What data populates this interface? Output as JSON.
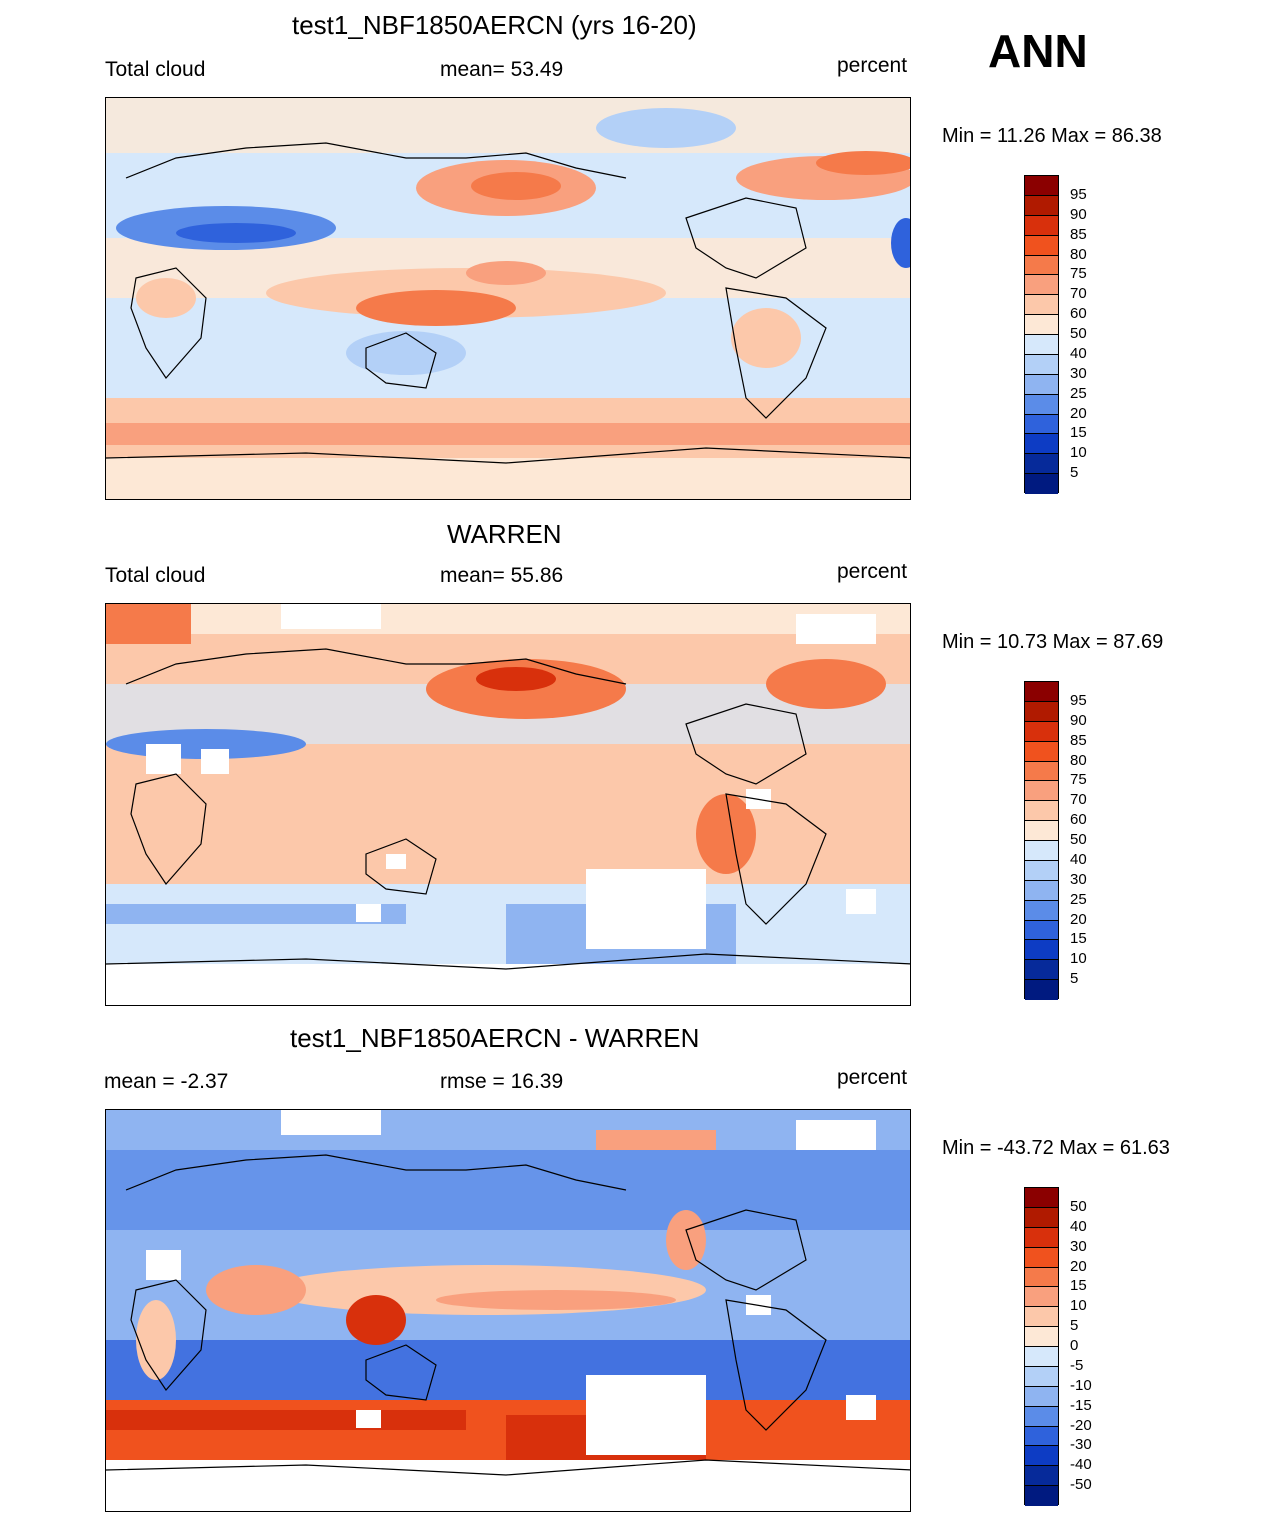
{
  "season": "ANN",
  "chart_data": [
    {
      "type": "heatmap",
      "title": "test1_NBF1850AERCN (yrs 16-20)",
      "left_label": "Total cloud",
      "center_label": "mean=  53.49",
      "right_label": "percent",
      "minmax": "Min =  11.26 Max =  86.38",
      "min": 11.26,
      "max": 86.38,
      "mean": 53.49,
      "levels": [
        "95",
        "90",
        "85",
        "80",
        "75",
        "70",
        "60",
        "50",
        "40",
        "30",
        "25",
        "20",
        "15",
        "10",
        "5"
      ],
      "colors": [
        "#8b0000",
        "#b01a00",
        "#d8300c",
        "#f0521e",
        "#f57a4a",
        "#f9a07e",
        "#fcc8aa",
        "#fde8d6",
        "#d6e8fb",
        "#b3d0f7",
        "#8fb4f1",
        "#5b8ce8",
        "#2f62dc",
        "#0d3cc4",
        "#062a9a",
        "#001a80"
      ]
    },
    {
      "type": "heatmap",
      "title": "WARREN",
      "left_label": "Total cloud",
      "center_label": "mean=  55.86",
      "right_label": "percent",
      "minmax": "Min =  10.73 Max =  87.69",
      "min": 10.73,
      "max": 87.69,
      "mean": 55.86,
      "levels": [
        "95",
        "90",
        "85",
        "80",
        "75",
        "70",
        "60",
        "50",
        "40",
        "30",
        "25",
        "20",
        "15",
        "10",
        "5"
      ],
      "colors": [
        "#8b0000",
        "#b01a00",
        "#d8300c",
        "#f0521e",
        "#f57a4a",
        "#f9a07e",
        "#fcc8aa",
        "#fde8d6",
        "#d6e8fb",
        "#b3d0f7",
        "#8fb4f1",
        "#5b8ce8",
        "#2f62dc",
        "#0d3cc4",
        "#062a9a",
        "#001a80"
      ]
    },
    {
      "type": "heatmap",
      "title": "test1_NBF1850AERCN - WARREN",
      "left_label": "mean =  -2.37",
      "center_label": "rmse =  16.39",
      "right_label": "percent",
      "minmax": "Min = -43.72 Max =  61.63",
      "min": -43.72,
      "max": 61.63,
      "mean": -2.37,
      "rmse": 16.39,
      "levels": [
        "50",
        "40",
        "30",
        "20",
        "15",
        "10",
        "5",
        "0",
        "-5",
        "-10",
        "-15",
        "-20",
        "-30",
        "-40",
        "-50"
      ],
      "colors": [
        "#8b0000",
        "#b01a00",
        "#d8300c",
        "#f0521e",
        "#f57a4a",
        "#f9a07e",
        "#fcc8aa",
        "#fde8d6",
        "#d6e8fb",
        "#b3d0f7",
        "#8fb4f1",
        "#5b8ce8",
        "#2f62dc",
        "#0d3cc4",
        "#062a9a",
        "#001a80"
      ]
    }
  ]
}
